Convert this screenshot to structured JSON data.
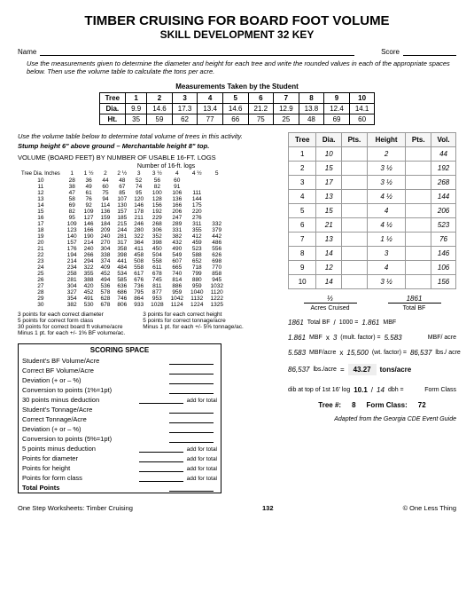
{
  "title": "TIMBER CRUISING FOR BOARD FOOT VOLUME",
  "subtitle": "SKILL DEVELOPMENT 32 KEY",
  "nameLabel": "Name",
  "scoreLabel": "Score",
  "instructions": "Use the measurements given to determine the diameter and height for each tree and write the rounded values in each of the appropriate spaces below. Then use the volume table to calculate the tons per acre.",
  "measTitle": "Measurements Taken by the Student",
  "measHeaders": [
    "Tree",
    "1",
    "2",
    "3",
    "4",
    "5",
    "6",
    "7",
    "8",
    "9",
    "10"
  ],
  "measDia": [
    "Dia.",
    "9.9",
    "14.6",
    "17.3",
    "13.4",
    "14.6",
    "21.2",
    "12.9",
    "13.8",
    "12.4",
    "14.1"
  ],
  "measHt": [
    "Ht.",
    "35",
    "59",
    "62",
    "77",
    "66",
    "75",
    "25",
    "48",
    "69",
    "60"
  ],
  "instr2": "Use the volume table below to determine total volume of trees in this activity.",
  "stump": "Stump height 6\" above ground – Merchantable height 8\" top.",
  "volTitle": "VOLUME (BOARD FEET) BY NUMBER OF USABLE 16-FT. LOGS",
  "logsLabel": "Number of 16-ft. logs",
  "diaHead": "Tree Dia. Inches",
  "volCols": [
    "1",
    "1 ½",
    "2",
    "2 ½",
    "3",
    "3 ½",
    "4",
    "4 ½",
    "5"
  ],
  "volRows": [
    [
      "10",
      "28",
      "36",
      "44",
      "48",
      "52",
      "56",
      "60",
      "",
      ""
    ],
    [
      "11",
      "38",
      "49",
      "60",
      "67",
      "74",
      "82",
      "91",
      "",
      ""
    ],
    [
      "12",
      "47",
      "61",
      "75",
      "85",
      "95",
      "100",
      "106",
      "111",
      ""
    ],
    [
      "13",
      "58",
      "76",
      "94",
      "107",
      "120",
      "128",
      "136",
      "144",
      ""
    ],
    [
      "14",
      "69",
      "92",
      "114",
      "130",
      "146",
      "156",
      "166",
      "175",
      ""
    ],
    [
      "15",
      "82",
      "109",
      "136",
      "157",
      "178",
      "192",
      "206",
      "220",
      ""
    ],
    [
      "16",
      "95",
      "127",
      "159",
      "185",
      "211",
      "229",
      "247",
      "276",
      ""
    ],
    [
      "17",
      "109",
      "146",
      "184",
      "215",
      "246",
      "268",
      "289",
      "311",
      "332"
    ],
    [
      "18",
      "123",
      "166",
      "209",
      "244",
      "280",
      "306",
      "331",
      "355",
      "379"
    ],
    [
      "19",
      "140",
      "190",
      "240",
      "281",
      "322",
      "352",
      "382",
      "412",
      "442"
    ],
    [
      "20",
      "157",
      "214",
      "270",
      "317",
      "364",
      "398",
      "432",
      "459",
      "486"
    ],
    [
      "21",
      "176",
      "240",
      "304",
      "358",
      "411",
      "450",
      "490",
      "523",
      "556"
    ],
    [
      "22",
      "194",
      "266",
      "338",
      "398",
      "458",
      "504",
      "549",
      "588",
      "626"
    ],
    [
      "23",
      "214",
      "294",
      "374",
      "441",
      "508",
      "558",
      "607",
      "652",
      "698"
    ],
    [
      "24",
      "234",
      "322",
      "409",
      "484",
      "558",
      "611",
      "665",
      "718",
      "770"
    ],
    [
      "25",
      "258",
      "355",
      "452",
      "534",
      "617",
      "678",
      "740",
      "799",
      "858"
    ],
    [
      "26",
      "281",
      "388",
      "494",
      "585",
      "676",
      "745",
      "814",
      "880",
      "945"
    ],
    [
      "27",
      "304",
      "420",
      "536",
      "636",
      "736",
      "811",
      "886",
      "959",
      "1032"
    ],
    [
      "28",
      "327",
      "452",
      "578",
      "686",
      "795",
      "877",
      "959",
      "1040",
      "1120"
    ],
    [
      "29",
      "354",
      "491",
      "628",
      "746",
      "864",
      "953",
      "1042",
      "1132",
      "1222"
    ],
    [
      "30",
      "382",
      "530",
      "678",
      "806",
      "933",
      "1028",
      "1124",
      "1224",
      "1325"
    ]
  ],
  "treeHeaders": [
    "Tree",
    "Dia.",
    "Pts.",
    "Height",
    "Pts.",
    "Vol."
  ],
  "treeRows": [
    [
      "1",
      "10",
      "",
      "2",
      "",
      "44"
    ],
    [
      "2",
      "15",
      "",
      "3 ½",
      "",
      "192"
    ],
    [
      "3",
      "17",
      "",
      "3 ½",
      "",
      "268"
    ],
    [
      "4",
      "13",
      "",
      "4 ½",
      "",
      "144"
    ],
    [
      "5",
      "15",
      "",
      "4",
      "",
      "206"
    ],
    [
      "6",
      "21",
      "",
      "4 ½",
      "",
      "523"
    ],
    [
      "7",
      "13",
      "",
      "1 ½",
      "",
      "76"
    ],
    [
      "8",
      "14",
      "",
      "3",
      "",
      "146"
    ],
    [
      "9",
      "12",
      "",
      "4",
      "",
      "106"
    ],
    [
      "10",
      "14",
      "",
      "3 ½",
      "",
      "156"
    ]
  ],
  "frac1": "⅓",
  "fracCap1": "Acres Cruised",
  "frac2": "1861",
  "fracCap2": "Total BF",
  "rulesLeft": [
    "3 points for each correct diameter",
    "5 points for correct form class",
    "30 points for correct board ft volume/acre",
    "Minus 1 pt. for each +/- 1% BF volume/ac."
  ],
  "rulesRight": [
    "3 points for each correct height",
    "5 points for correct tonnage/acre",
    "Minus 1 pt. for each +/- 5% tonnage/ac."
  ],
  "scoringTitle": "SCORING SPACE",
  "scoringRows": [
    {
      "l": "Student's BF Volume/Acre",
      "e": ""
    },
    {
      "l": "Correct BF Volume/Acre",
      "e": ""
    },
    {
      "l": "Deviation (+ or – %)",
      "e": ""
    },
    {
      "l": "Conversion to points (1%=1pt)",
      "e": ""
    },
    {
      "l": "30 points minus deduction",
      "e": "add for total"
    },
    {
      "l": "Student's Tonnage/Acre",
      "e": ""
    },
    {
      "l": "Correct Tonnage/Acre",
      "e": ""
    },
    {
      "l": "Deviation (+ or – %)",
      "e": ""
    },
    {
      "l": "Conversion to points (5%=1pt)",
      "e": ""
    },
    {
      "l": "5 points minus deduction",
      "e": "add for total"
    },
    {
      "l": "Points for diameter",
      "e": "add for total"
    },
    {
      "l": "Points for height",
      "e": "add for total"
    },
    {
      "l": "Points for form class",
      "e": "add for total"
    },
    {
      "l": "Total Points",
      "e": "",
      "b": true
    }
  ],
  "calc": {
    "r1": {
      "a": "1861",
      "b": "Total BF",
      "c": "/",
      "d": "1000 =",
      "e": "1.861",
      "f": "MBF"
    },
    "r2": {
      "a": "1.861",
      "b": "MBF",
      "c": "x",
      "d": "3",
      "e": "(mult. factor) =",
      "f": "5.583",
      "g": "MBF/ acre"
    },
    "r3": {
      "a": "5.583",
      "b": "MBF/acre",
      "c": "x",
      "d": "15,500",
      "e": "(wt. factor) =",
      "f": "86,537",
      "g": "lbs./ acre"
    },
    "r4": {
      "a": "86,537",
      "b": "lbs./acre",
      "c": "=",
      "d": "43.27",
      "e": "tons/acre"
    },
    "r5": {
      "a": "dib at top of 1st 16' log",
      "b": "10.1",
      "c": "/",
      "d": "14",
      "e": "dbh =",
      "f": "Form Class"
    },
    "r6": {
      "a": "Tree #:",
      "b": "8",
      "c": "Form Class:",
      "d": "72"
    }
  },
  "adapted": "Adapted from the Georgia CDE Event Guide",
  "footerLeft": "One Step Worksheets: Timber Cruising",
  "footerCenter": "132",
  "footerRight": "© One Less Thing"
}
